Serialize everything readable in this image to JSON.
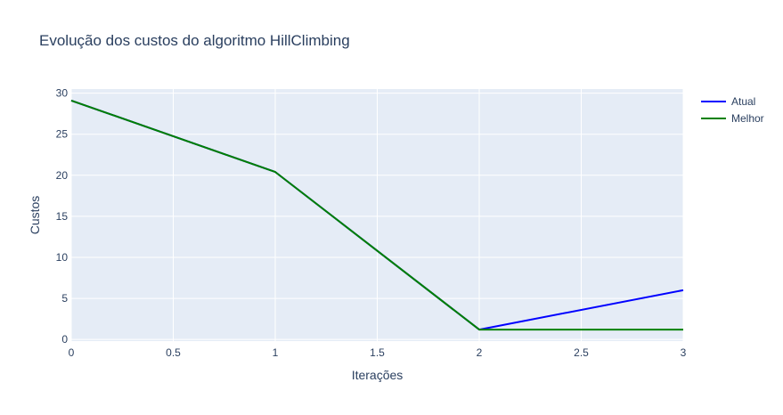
{
  "chart_data": {
    "type": "line",
    "title": "Evolução dos custos do algoritmo HillClimbing",
    "xlabel": "Iterações",
    "ylabel": "Custos",
    "x": [
      0,
      1,
      2,
      3
    ],
    "xlim": [
      0,
      3
    ],
    "ylim": [
      -0.2,
      30.5
    ],
    "xticks": [
      0,
      0.5,
      1,
      1.5,
      2,
      2.5,
      3
    ],
    "xtick_labels": [
      "0",
      "0.5",
      "1",
      "1.5",
      "2",
      "2.5",
      "3"
    ],
    "yticks": [
      0,
      5,
      10,
      15,
      20,
      25,
      30
    ],
    "ytick_labels": [
      "0",
      "5",
      "10",
      "15",
      "20",
      "25",
      "30"
    ],
    "grid": true,
    "legend_position": "top-right",
    "plot_background": "#e5ecf6",
    "series": [
      {
        "name": "Atual",
        "color": "#0000ff",
        "values": [
          29.1,
          20.4,
          1.2,
          6.0
        ]
      },
      {
        "name": "Melhor",
        "color": "#008000",
        "values": [
          29.1,
          20.4,
          1.2,
          1.2
        ]
      }
    ]
  }
}
